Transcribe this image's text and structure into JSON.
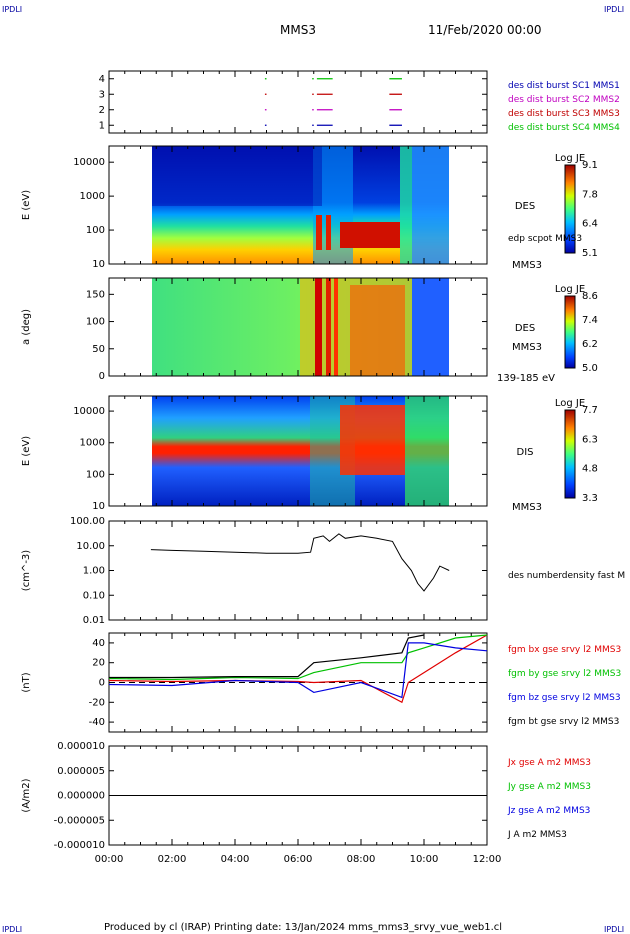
{
  "header": {
    "corner_left_top": "IPDLI",
    "corner_right_top": "IPDLI",
    "corner_left_bottom": "IPDLI",
    "corner_right_bottom": "IPDLI",
    "spacecraft": "MMS3",
    "date": "11/Feb/2020 00:00"
  },
  "footer": {
    "text": "Produced by cl (IRAP)   Printing date: 13/Jan/2024   mms_mms3_srvy_vue_web1.cl"
  },
  "colors": {
    "c1": "#0000b0",
    "c2": "#c000c0",
    "c3": "#c00000",
    "c4": "#00c000",
    "bx": "#e00000",
    "by": "#00c000",
    "bz": "#0000e0",
    "bt": "#000000"
  },
  "chart_data": [
    {
      "type": "timeline",
      "panel": "burst-availability",
      "ylim": [
        0.5,
        4.5
      ],
      "yticks": [
        "1",
        "2",
        "3",
        "4"
      ],
      "series": [
        {
          "name": "des dist burst SC1 MMS1",
          "level": 1,
          "intervals": [
            [
              4.95,
              5.0
            ],
            [
              6.45,
              6.5
            ],
            [
              6.6,
              7.1
            ],
            [
              8.9,
              9.3
            ]
          ]
        },
        {
          "name": "des dist burst SC2 MMS2",
          "level": 2,
          "intervals": [
            [
              4.95,
              5.0
            ],
            [
              6.45,
              6.5
            ],
            [
              6.6,
              7.1
            ],
            [
              8.9,
              9.3
            ]
          ]
        },
        {
          "name": "des dist burst SC3 MMS3",
          "level": 3,
          "intervals": [
            [
              4.95,
              5.0
            ],
            [
              6.45,
              6.5
            ],
            [
              6.6,
              7.1
            ],
            [
              8.9,
              9.3
            ]
          ]
        },
        {
          "name": "des dist burst SC4 MMS4",
          "level": 4,
          "intervals": [
            [
              4.95,
              5.0
            ],
            [
              6.45,
              6.5
            ],
            [
              6.6,
              7.1
            ],
            [
              8.9,
              9.3
            ]
          ]
        }
      ]
    },
    {
      "type": "heatmap",
      "panel": "des-energy",
      "ylabel": "E (eV)",
      "yscale": "log",
      "ylim": [
        10,
        30000
      ],
      "yticks": [
        "10",
        "100",
        "1000",
        "10000"
      ],
      "label": "DES",
      "sublabel": "MMS3",
      "extra_label": "edp scpot MMS3",
      "colorbar": {
        "title": "Log JE",
        "ticks": [
          "5.1",
          "6.4",
          "7.8",
          "9.1"
        ]
      },
      "data_start": 1.33,
      "data_end": 10.8
    },
    {
      "type": "heatmap",
      "panel": "des-pitch",
      "ylabel": "a (deg)",
      "ylim": [
        0,
        180
      ],
      "yticks": [
        "0",
        "50",
        "100",
        "150"
      ],
      "label": "DES",
      "sublabel": "MMS3",
      "extra_label": "139-185 eV",
      "colorbar": {
        "title": "Log JE",
        "ticks": [
          "5.0",
          "6.2",
          "7.4",
          "8.6"
        ]
      },
      "data_start": 1.33,
      "data_end": 10.8
    },
    {
      "type": "heatmap",
      "panel": "dis-energy",
      "ylabel": "E (eV)",
      "yscale": "log",
      "ylim": [
        10,
        30000
      ],
      "yticks": [
        "10",
        "100",
        "1000",
        "10000"
      ],
      "label": "DIS",
      "sublabel": "MMS3",
      "colorbar": {
        "title": "Log JE",
        "ticks": [
          "3.3",
          "4.8",
          "6.3",
          "7.7"
        ]
      },
      "data_start": 1.33,
      "data_end": 10.8
    },
    {
      "type": "line",
      "panel": "density",
      "ylabel": "(cm^-3)",
      "yscale": "log",
      "ylim": [
        0.01,
        100
      ],
      "yticks": [
        "0.01",
        "0.10",
        "1.00",
        "10.00",
        "100.00"
      ],
      "series": [
        {
          "name": "des numberdensity fast M",
          "x": [
            1.33,
            2.0,
            3.0,
            4.0,
            5.0,
            6.0,
            6.4,
            6.5,
            6.8,
            7.0,
            7.3,
            7.5,
            8.0,
            8.5,
            9.0,
            9.3,
            9.6,
            9.8,
            10.0,
            10.3,
            10.5,
            10.8
          ],
          "y": [
            7,
            6.5,
            6,
            5.5,
            5,
            5,
            5.5,
            20,
            25,
            15,
            30,
            20,
            25,
            20,
            15,
            3,
            1,
            0.3,
            0.15,
            0.5,
            1.5,
            1.0
          ]
        }
      ]
    },
    {
      "type": "line",
      "panel": "magnetic-field",
      "ylabel": "(nT)",
      "ylim": [
        -50,
        50
      ],
      "yticks": [
        "-40",
        "-20",
        "0",
        "20",
        "40"
      ],
      "series": [
        {
          "name": "fgm bx gse srvy l2 MMS3",
          "x": [
            0,
            2,
            4,
            6,
            6.5,
            8,
            9.3,
            9.5,
            10,
            11,
            12
          ],
          "y": [
            2,
            1,
            2,
            1,
            0,
            2,
            -20,
            0,
            10,
            30,
            48
          ]
        },
        {
          "name": "fgm by gse srvy l2 MMS3",
          "x": [
            0,
            2,
            4,
            6,
            6.5,
            8,
            9.3,
            9.5,
            10,
            11,
            12
          ],
          "y": [
            4,
            3,
            5,
            4,
            10,
            20,
            20,
            30,
            35,
            45,
            48
          ]
        },
        {
          "name": "fgm bz gse srvy l2 MMS3",
          "x": [
            0,
            2,
            4,
            6,
            6.5,
            8,
            9.3,
            9.5,
            10,
            11,
            12
          ],
          "y": [
            -2,
            -3,
            2,
            0,
            -10,
            0,
            -15,
            40,
            40,
            35,
            32
          ]
        },
        {
          "name": "fgm bt gse srvy l2 MMS3",
          "x": [
            0,
            2,
            4,
            6,
            6.5,
            8,
            9.3,
            9.5,
            10
          ],
          "y": [
            5,
            5,
            6,
            6,
            20,
            25,
            30,
            45,
            48
          ]
        }
      ]
    },
    {
      "type": "line",
      "panel": "current",
      "ylabel": "(A/m2)",
      "ylim": [
        -1e-05,
        1e-05
      ],
      "yticks": [
        "-0.000010",
        "-0.000005",
        "0.000000",
        "0.000005",
        "0.000010"
      ],
      "series": [
        {
          "name": "Jx gse A m2 MMS3",
          "x": [
            0,
            12
          ],
          "y": [
            0,
            0
          ]
        },
        {
          "name": "Jy gse A m2 MMS3",
          "x": [
            0,
            12
          ],
          "y": [
            0,
            0
          ]
        },
        {
          "name": "Jz gse A m2 MMS3",
          "x": [
            0,
            12
          ],
          "y": [
            0,
            0
          ]
        },
        {
          "name": "J A m2 MMS3",
          "x": [
            0,
            12
          ],
          "y": [
            0,
            0
          ]
        }
      ]
    }
  ],
  "xaxis": {
    "range": [
      0,
      12
    ],
    "ticks": [
      "00:00",
      "02:00",
      "04:00",
      "06:00",
      "08:00",
      "10:00",
      "12:00"
    ]
  }
}
